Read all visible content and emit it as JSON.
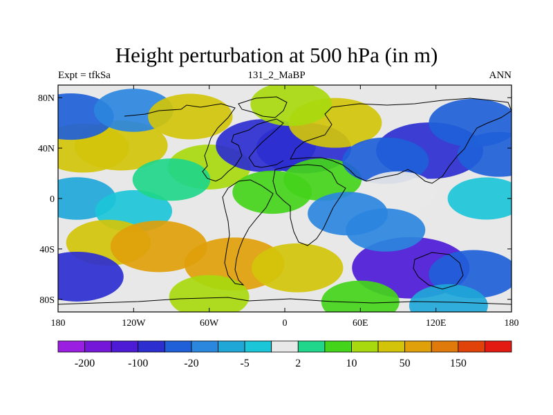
{
  "chart_data": {
    "type": "heatmap",
    "title": "Height perturbation at 500 hPa (in m)",
    "left_label": "Expt = tfkSa",
    "center_label": "131_2_MaBP",
    "right_label": "ANN",
    "xlim": [
      -180,
      180
    ],
    "ylim": [
      -90,
      90
    ],
    "x_ticks": [
      "180",
      "120W",
      "60W",
      "0",
      "60E",
      "120E",
      "180"
    ],
    "y_ticks": [
      "80N",
      "40N",
      "0",
      "40S",
      "80S"
    ],
    "x_tick_values": [
      -180,
      -120,
      -60,
      0,
      60,
      120,
      180
    ],
    "y_tick_values": [
      80,
      40,
      0,
      -40,
      -80
    ],
    "colorbar": {
      "colors": [
        "#9b1fe0",
        "#7417d9",
        "#4d1ad6",
        "#2c2ed0",
        "#1f5fd8",
        "#2b86de",
        "#1fa7d8",
        "#1cc6d9",
        "#e8e8e8",
        "#1fd68a",
        "#44d41a",
        "#a8d90e",
        "#d3c40a",
        "#e0a00a",
        "#e07a0a",
        "#e0420a",
        "#e31a12"
      ],
      "labels": [
        "-200",
        "-100",
        "-20",
        "-5",
        "2",
        "10",
        "50",
        "150"
      ],
      "label_positions": [
        1,
        3,
        5,
        7,
        9,
        11,
        13,
        15
      ]
    },
    "fields": [
      {
        "lon": -130,
        "lat": 42,
        "value": 50
      },
      {
        "lon": -160,
        "lat": 40,
        "value": 45
      },
      {
        "lon": -170,
        "lat": 65,
        "value": -30
      },
      {
        "lon": -120,
        "lat": 70,
        "value": -10
      },
      {
        "lon": -75,
        "lat": 65,
        "value": 25
      },
      {
        "lon": -60,
        "lat": 25,
        "value": 20
      },
      {
        "lon": -15,
        "lat": 42,
        "value": -70
      },
      {
        "lon": 15,
        "lat": 40,
        "value": -55
      },
      {
        "lon": 40,
        "lat": 60,
        "value": 50
      },
      {
        "lon": 5,
        "lat": 75,
        "value": 15
      },
      {
        "lon": -10,
        "lat": 5,
        "value": 10
      },
      {
        "lon": 30,
        "lat": 15,
        "value": 6
      },
      {
        "lon": 115,
        "lat": 38,
        "value": -90
      },
      {
        "lon": 150,
        "lat": 60,
        "value": -40
      },
      {
        "lon": 170,
        "lat": 35,
        "value": -20
      },
      {
        "lon": 80,
        "lat": 30,
        "value": -30
      },
      {
        "lon": 90,
        "lat": 5,
        "value": 1
      },
      {
        "lon": 160,
        "lat": 0,
        "value": -4
      },
      {
        "lon": -165,
        "lat": 0,
        "value": -6
      },
      {
        "lon": -120,
        "lat": -10,
        "value": -3
      },
      {
        "lon": -90,
        "lat": 15,
        "value": 5
      },
      {
        "lon": -140,
        "lat": -35,
        "value": 25
      },
      {
        "lon": -100,
        "lat": -38,
        "value": 60
      },
      {
        "lon": -40,
        "lat": -52,
        "value": 70
      },
      {
        "lon": 10,
        "lat": -55,
        "value": 45
      },
      {
        "lon": -165,
        "lat": -62,
        "value": -50
      },
      {
        "lon": 100,
        "lat": -55,
        "value": -120
      },
      {
        "lon": 150,
        "lat": -60,
        "value": -40
      },
      {
        "lon": 80,
        "lat": -25,
        "value": -10
      },
      {
        "lon": 50,
        "lat": -12,
        "value": -12
      },
      {
        "lon": -60,
        "lat": -78,
        "value": 12
      },
      {
        "lon": 60,
        "lat": -82,
        "value": 6
      },
      {
        "lon": 130,
        "lat": -85,
        "value": -8
      }
    ]
  }
}
